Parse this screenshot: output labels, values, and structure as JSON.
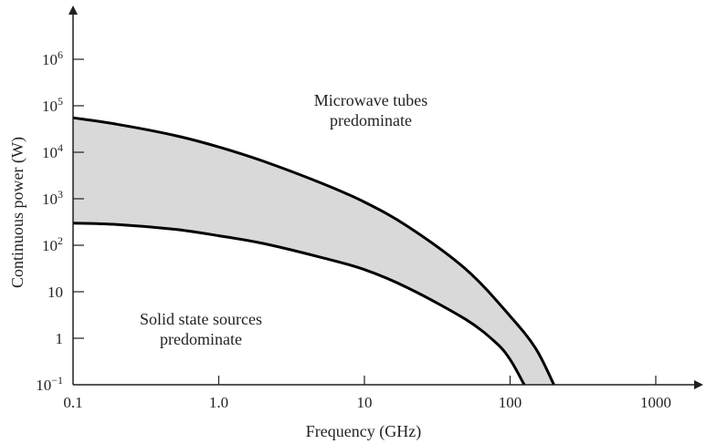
{
  "chart_data": {
    "type": "area",
    "xlabel": "Frequency (GHz)",
    "ylabel": "Continuous power (W)",
    "x_scale": "log",
    "y_scale": "log",
    "xlim": [
      0.1,
      2000
    ],
    "ylim": [
      0.1,
      10000000
    ],
    "grid": false,
    "x_ticks": [
      {
        "value": 0.1,
        "label": "0.1"
      },
      {
        "value": 1,
        "label": "1.0"
      },
      {
        "value": 10,
        "label": "10"
      },
      {
        "value": 100,
        "label": "100"
      },
      {
        "value": 1000,
        "label": "1000"
      }
    ],
    "y_ticks": [
      {
        "value": 0.1,
        "base": "10",
        "exp": "−1"
      },
      {
        "value": 1,
        "base": "1",
        "exp": ""
      },
      {
        "value": 10,
        "base": "10",
        "exp": ""
      },
      {
        "value": 100,
        "base": "10",
        "exp": "2"
      },
      {
        "value": 1000,
        "base": "10",
        "exp": "3"
      },
      {
        "value": 10000,
        "base": "10",
        "exp": "4"
      },
      {
        "value": 100000,
        "base": "10",
        "exp": "5"
      },
      {
        "value": 1000000,
        "base": "10",
        "exp": "6"
      }
    ],
    "series": [
      {
        "role": "upper-boundary",
        "points": [
          [
            0.1,
            55000
          ],
          [
            0.2,
            40000
          ],
          [
            0.5,
            23000
          ],
          [
            1,
            13000
          ],
          [
            2,
            6500
          ],
          [
            5,
            2200
          ],
          [
            10,
            850
          ],
          [
            20,
            250
          ],
          [
            50,
            30
          ],
          [
            100,
            3
          ],
          [
            150,
            0.6
          ],
          [
            200,
            0.1
          ]
        ]
      },
      {
        "role": "lower-boundary",
        "points": [
          [
            0.1,
            300
          ],
          [
            0.2,
            280
          ],
          [
            0.5,
            220
          ],
          [
            1,
            160
          ],
          [
            2,
            110
          ],
          [
            5,
            55
          ],
          [
            10,
            30
          ],
          [
            20,
            12
          ],
          [
            50,
            2.5
          ],
          [
            80,
            0.8
          ],
          [
            100,
            0.35
          ],
          [
            125,
            0.1
          ]
        ]
      }
    ],
    "fill_color": "#d9d9d9",
    "line_color": "#000000",
    "annotations": [
      {
        "name": "microwave-tubes",
        "lines": [
          "Microwave tubes",
          "predominate"
        ]
      },
      {
        "name": "solid-state",
        "lines": [
          "Solid state sources",
          "predominate"
        ]
      }
    ]
  }
}
